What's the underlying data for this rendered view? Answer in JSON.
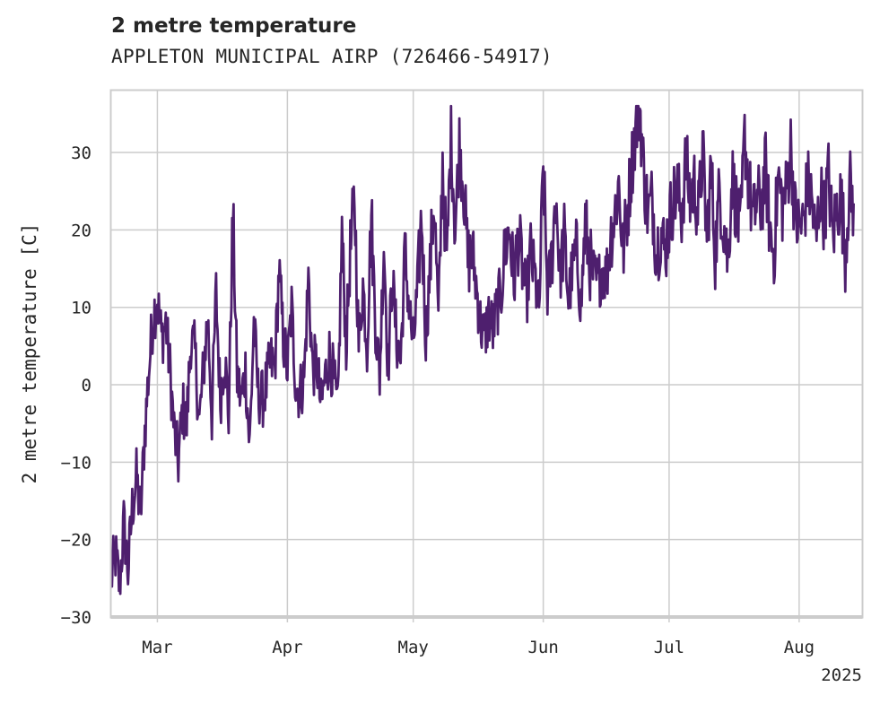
{
  "chart_data": {
    "type": "line",
    "title": "2 metre temperature",
    "subtitle": "APPLETON MUNICIPAL AIRP (726466-54917)",
    "ylabel": "2 metre temperature [C]",
    "xlabel": "",
    "year_label": "2025",
    "ylim": [
      -30,
      38
    ],
    "xlim": [
      "2025-02-18",
      "2025-08-16"
    ],
    "yticks": [
      -30,
      -20,
      -10,
      0,
      10,
      20,
      30
    ],
    "xticks": [
      {
        "date": "2025-03-01",
        "label": "Mar"
      },
      {
        "date": "2025-04-01",
        "label": "Apr"
      },
      {
        "date": "2025-05-01",
        "label": "May"
      },
      {
        "date": "2025-06-01",
        "label": "Jun"
      },
      {
        "date": "2025-07-01",
        "label": "Jul"
      },
      {
        "date": "2025-08-01",
        "label": "Aug"
      }
    ],
    "grid": true,
    "line_color": "#4e1f6e",
    "series": [
      {
        "name": "",
        "x": [
          "2025-02-18",
          "2025-02-19",
          "2025-02-20",
          "2025-02-21",
          "2025-02-22",
          "2025-02-23",
          "2025-02-24",
          "2025-02-25",
          "2025-02-26",
          "2025-02-27",
          "2025-02-28",
          "2025-03-01",
          "2025-03-02",
          "2025-03-03",
          "2025-03-04",
          "2025-03-05",
          "2025-03-06",
          "2025-03-07",
          "2025-03-08",
          "2025-03-09",
          "2025-03-10",
          "2025-03-11",
          "2025-03-12",
          "2025-03-13",
          "2025-03-14",
          "2025-03-15",
          "2025-03-16",
          "2025-03-17",
          "2025-03-18",
          "2025-03-19",
          "2025-03-20",
          "2025-03-21",
          "2025-03-22",
          "2025-03-23",
          "2025-03-24",
          "2025-03-25",
          "2025-03-26",
          "2025-03-27",
          "2025-03-28",
          "2025-03-29",
          "2025-03-30",
          "2025-03-31",
          "2025-04-01",
          "2025-04-02",
          "2025-04-03",
          "2025-04-04",
          "2025-04-05",
          "2025-04-06",
          "2025-04-07",
          "2025-04-08",
          "2025-04-09",
          "2025-04-10",
          "2025-04-11",
          "2025-04-12",
          "2025-04-13",
          "2025-04-14",
          "2025-04-15",
          "2025-04-16",
          "2025-04-17",
          "2025-04-18",
          "2025-04-19",
          "2025-04-20",
          "2025-04-21",
          "2025-04-22",
          "2025-04-23",
          "2025-04-24",
          "2025-04-25",
          "2025-04-26",
          "2025-04-27",
          "2025-04-28",
          "2025-04-29",
          "2025-04-30",
          "2025-05-01",
          "2025-05-02",
          "2025-05-03",
          "2025-05-04",
          "2025-05-05",
          "2025-05-06",
          "2025-05-07",
          "2025-05-08",
          "2025-05-09",
          "2025-05-10",
          "2025-05-11",
          "2025-05-12",
          "2025-05-13",
          "2025-05-14",
          "2025-05-15",
          "2025-05-16",
          "2025-05-17",
          "2025-05-18",
          "2025-05-19",
          "2025-05-20",
          "2025-05-21",
          "2025-05-22",
          "2025-05-23",
          "2025-05-24",
          "2025-05-25",
          "2025-05-26",
          "2025-05-27",
          "2025-05-28",
          "2025-05-29",
          "2025-05-30",
          "2025-05-31",
          "2025-06-01",
          "2025-06-02",
          "2025-06-03",
          "2025-06-04",
          "2025-06-05",
          "2025-06-06",
          "2025-06-07",
          "2025-06-08",
          "2025-06-09",
          "2025-06-10",
          "2025-06-11",
          "2025-06-12",
          "2025-06-13",
          "2025-06-14",
          "2025-06-15",
          "2025-06-16",
          "2025-06-17",
          "2025-06-18",
          "2025-06-19",
          "2025-06-20",
          "2025-06-21",
          "2025-06-22",
          "2025-06-23",
          "2025-06-24",
          "2025-06-25",
          "2025-06-26",
          "2025-06-27",
          "2025-06-28",
          "2025-06-29",
          "2025-06-30",
          "2025-07-01",
          "2025-07-02",
          "2025-07-03",
          "2025-07-04",
          "2025-07-05",
          "2025-07-06",
          "2025-07-07",
          "2025-07-08",
          "2025-07-09",
          "2025-07-10",
          "2025-07-11",
          "2025-07-12",
          "2025-07-13",
          "2025-07-14",
          "2025-07-15",
          "2025-07-16",
          "2025-07-17",
          "2025-07-18",
          "2025-07-19",
          "2025-07-20",
          "2025-07-21",
          "2025-07-22",
          "2025-07-23",
          "2025-07-24",
          "2025-07-25",
          "2025-07-26",
          "2025-07-27",
          "2025-07-28",
          "2025-07-29",
          "2025-07-30",
          "2025-07-31",
          "2025-08-01",
          "2025-08-02",
          "2025-08-03",
          "2025-08-04",
          "2025-08-05",
          "2025-08-06",
          "2025-08-07",
          "2025-08-08",
          "2025-08-09",
          "2025-08-10",
          "2025-08-11",
          "2025-08-12",
          "2025-08-13",
          "2025-08-14",
          "2025-08-15"
        ],
        "y": [
          -25,
          -22,
          -26,
          -18,
          -24,
          -16,
          -12,
          -17,
          -6,
          2,
          9,
          11,
          6,
          8,
          2,
          -6,
          -10,
          -3,
          -5,
          6,
          4,
          -5,
          2,
          9,
          -4,
          12,
          -2,
          4,
          -4,
          22,
          1,
          -2,
          2,
          -8,
          8,
          -1,
          -2,
          0,
          3,
          2,
          15,
          6,
          2,
          10,
          0,
          -1,
          1,
          14,
          2,
          3,
          -3,
          1,
          4,
          1,
          -4,
          20,
          5,
          17,
          24,
          5,
          13,
          5,
          22,
          8,
          1,
          19,
          2,
          14,
          6,
          3,
          17,
          10,
          5,
          12,
          22,
          6,
          15,
          24,
          8,
          29,
          15,
          33,
          20,
          31,
          26,
          16,
          17,
          13,
          8,
          6,
          9,
          7,
          10,
          12,
          18,
          20,
          13,
          19,
          15,
          11,
          17,
          14,
          9,
          28,
          12,
          16,
          25,
          14,
          19,
          11,
          15,
          17,
          10,
          21,
          16,
          14,
          13,
          15,
          14,
          19,
          22,
          26,
          17,
          22,
          28,
          33,
          36,
          27,
          22,
          24,
          17,
          20,
          17,
          21,
          24,
          25,
          22,
          29,
          24,
          26,
          22,
          30,
          19,
          28,
          17,
          25,
          21,
          16,
          27,
          23,
          19,
          32,
          26,
          21,
          24,
          23,
          28,
          20,
          17,
          27,
          23,
          25,
          31,
          22,
          20,
          21,
          26,
          24,
          18,
          25,
          22,
          27,
          19,
          23,
          24,
          17,
          26,
          23,
          25
        ]
      }
    ]
  }
}
